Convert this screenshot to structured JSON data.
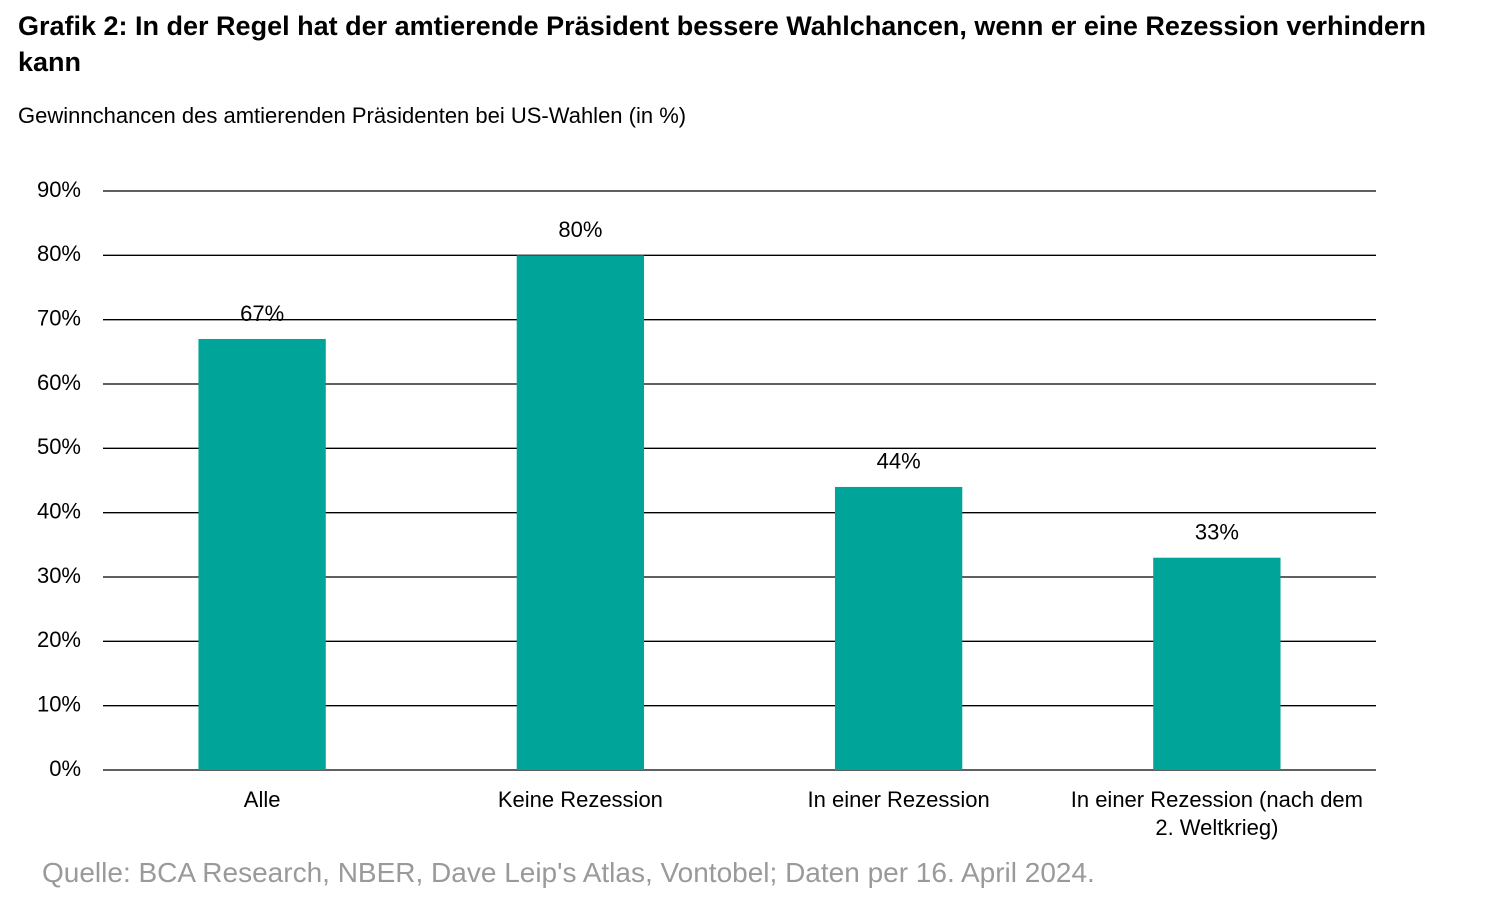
{
  "chart_data": {
    "type": "bar",
    "title": "Grafik 2: In der Regel hat der amtierende Präsident bessere Wahlchancen, wenn er eine Rezession verhindern kann",
    "subtitle": "Gewinnchancen des amtierenden Präsidenten bei US-Wahlen (in %)",
    "source": "Quelle: BCA Research, NBER, Dave Leip's Atlas, Vontobel; Daten per 16. April 2024.",
    "categories": [
      "Alle",
      "Keine Rezession",
      "In einer Rezession",
      "In einer Rezession (nach dem 2. Weltkrieg)"
    ],
    "values": [
      67,
      80,
      44,
      33
    ],
    "value_labels": [
      "67%",
      "80%",
      "44%",
      "33%"
    ],
    "color": "#00a499",
    "ylim": [
      0,
      90
    ],
    "yticks": [
      {
        "value": 0,
        "label": "0%"
      },
      {
        "value": 10,
        "label": "10%"
      },
      {
        "value": 20,
        "label": "20%"
      },
      {
        "value": 30,
        "label": "30%"
      },
      {
        "value": 40,
        "label": "40%"
      },
      {
        "value": 50,
        "label": "50%"
      },
      {
        "value": 60,
        "label": "60%"
      },
      {
        "value": 70,
        "label": "70%"
      },
      {
        "value": 80,
        "label": "80%"
      },
      {
        "value": 90,
        "label": "90%"
      }
    ],
    "grid": true
  }
}
